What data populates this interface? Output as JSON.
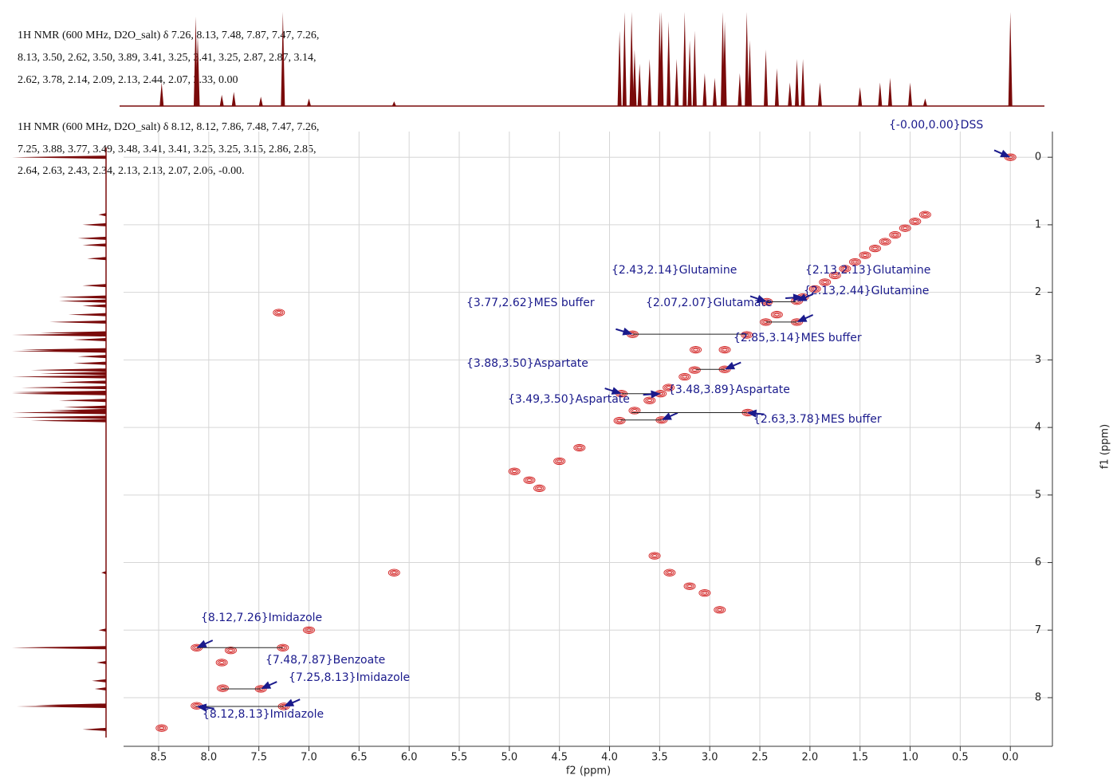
{
  "chart_data": {
    "type": "cosy",
    "xlabel": "f2 (ppm)",
    "ylabel": "f1 (ppm)",
    "xlim": [
      8.85,
      -0.42
    ],
    "ylim": [
      -0.38,
      8.72
    ],
    "xticks": [
      8.5,
      {
        "value": 8,
        "label": "8.0"
      },
      7.5,
      {
        "value": 7,
        "label": "7.0"
      },
      6.5,
      {
        "value": 6,
        "label": "6.0"
      },
      5.5,
      {
        "value": 5,
        "label": "5.0"
      },
      4.5,
      {
        "value": 4,
        "label": "4.0"
      },
      3.5,
      {
        "value": 3,
        "label": "3.0"
      },
      2.5,
      {
        "value": 2,
        "label": "2.0"
      },
      1.5,
      {
        "value": 1,
        "label": "1.0"
      },
      0.5,
      {
        "value": 0,
        "label": "0.0"
      }
    ],
    "yticks": [
      0,
      1,
      2,
      3,
      4,
      5,
      6,
      7,
      8
    ],
    "grid": true,
    "header_blocks": [
      [
        "1H NMR (600 MHz, D2O_salt)  δ 7.26, 8.13, 7.48, 7.87, 7.47, 7.26,",
        "8.13, 3.50, 2.62, 3.50, 3.89, 3.41, 3.25, 3.41, 3.25, 2.87, 2.87, 3.14,",
        "2.62, 3.78, 2.14, 2.09, 2.13, 2.44, 2.07, 2.33, 0.00"
      ],
      [
        "1H NMR (600 MHz, D2O_salt)  δ 8.12, 8.12, 7.86, 7.48, 7.47, 7.26,",
        "7.25, 3.88, 3.77, 3.49, 3.48, 3.41, 3.41, 3.25, 3.25, 3.15, 2.86, 2.85,",
        "2.64, 2.63, 2.43, 2.34, 2.13, 2.13, 2.07, 2.06, -0.00."
      ]
    ],
    "annotations": [
      {
        "text": "{-0.00,0.00}DSS",
        "x": 0,
        "y": 0
      },
      {
        "text": "{2.43,2.14}Glutamine",
        "x": 2.43,
        "y": 2.14
      },
      {
        "text": "{2.13,2.13}Glutamine",
        "x": 2.13,
        "y": 2.13
      },
      {
        "text": "{2.13,2.44}Glutamine",
        "x": 2.13,
        "y": 2.44
      },
      {
        "text": "{2.07,2.07}Glutamate",
        "x": 2.07,
        "y": 2.07
      },
      {
        "text": "{3.77,2.62}MES buffer",
        "x": 3.77,
        "y": 2.62
      },
      {
        "text": "{2.85,3.14}MES buffer",
        "x": 2.85,
        "y": 3.14
      },
      {
        "text": "{3.88,3.50}Aspartate",
        "x": 3.88,
        "y": 3.5
      },
      {
        "text": "{3.48,3.89}Aspartate",
        "x": 3.48,
        "y": 3.89
      },
      {
        "text": "{3.49,3.50}Aspartate",
        "x": 3.49,
        "y": 3.5
      },
      {
        "text": "{2.63,3.78}MES buffer",
        "x": 2.63,
        "y": 3.78
      },
      {
        "text": "{8.12,7.26}Imidazole",
        "x": 8.12,
        "y": 7.26
      },
      {
        "text": "{7.48,7.87}Benzoate",
        "x": 7.48,
        "y": 7.87
      },
      {
        "text": "{7.25,8.13}Imidazole",
        "x": 7.25,
        "y": 8.13
      },
      {
        "text": "{8.12,8.13}Imidazole",
        "x": 8.12,
        "y": 8.13
      }
    ],
    "peaks": {
      "x": [
        0,
        0.85,
        0.95,
        1.05,
        1.15,
        1.25,
        1.35,
        1.45,
        1.55,
        1.65,
        1.75,
        1.85,
        1.95,
        2.13,
        2.07,
        2.43,
        2.13,
        2.33,
        2.44,
        2.63,
        3.77,
        2.62,
        2.85,
        2.85,
        3.14,
        3.15,
        3.25,
        3.41,
        3.49,
        3.48,
        3.88,
        3.6,
        3.75,
        3.9,
        4.5,
        4.3,
        4.95,
        4.8,
        4.7,
        3.55,
        3.4,
        3.2,
        3.05,
        2.9,
        8.12,
        8.12,
        7.26,
        7.25,
        7.48,
        7.87,
        7.78,
        7.86,
        7.0,
        8.47,
        6.15,
        7.3
      ],
      "y": [
        0,
        0.85,
        0.95,
        1.05,
        1.15,
        1.25,
        1.35,
        1.45,
        1.55,
        1.65,
        1.75,
        1.85,
        1.95,
        2.13,
        2.07,
        2.14,
        2.44,
        2.33,
        2.44,
        2.63,
        2.62,
        3.78,
        2.85,
        3.14,
        2.85,
        3.15,
        3.25,
        3.41,
        3.5,
        3.89,
        3.5,
        3.6,
        3.75,
        3.9,
        4.5,
        4.3,
        4.65,
        4.78,
        4.9,
        5.9,
        6.15,
        6.35,
        6.45,
        6.7,
        8.12,
        7.26,
        7.26,
        8.13,
        7.87,
        7.48,
        7.3,
        7.86,
        7.0,
        8.45,
        6.15,
        2.3
      ]
    },
    "projection": {
      "ppm": [
        8.47,
        8.13,
        8.11,
        7.87,
        7.75,
        7.48,
        7.26,
        7.0,
        6.15,
        3.9,
        3.85,
        3.78,
        3.75,
        3.7,
        3.6,
        3.5,
        3.48,
        3.41,
        3.33,
        3.25,
        3.2,
        3.15,
        3.05,
        2.95,
        2.87,
        2.85,
        2.7,
        2.63,
        2.6,
        2.44,
        2.33,
        2.2,
        2.13,
        2.07,
        1.9,
        1.5,
        1.3,
        1.2,
        1.0,
        0.85,
        0
      ],
      "intensity": [
        25,
        95,
        75,
        12,
        15,
        10,
        100,
        8,
        5,
        80,
        100,
        100,
        60,
        45,
        50,
        100,
        100,
        90,
        50,
        100,
        70,
        80,
        35,
        30,
        100,
        90,
        35,
        100,
        70,
        60,
        40,
        25,
        50,
        50,
        25,
        20,
        25,
        30,
        25,
        8,
        100
      ]
    },
    "peak_color": "#d42a2a",
    "trace_color": "#7a0a0a",
    "annotation_color": "#1a1a8c"
  }
}
